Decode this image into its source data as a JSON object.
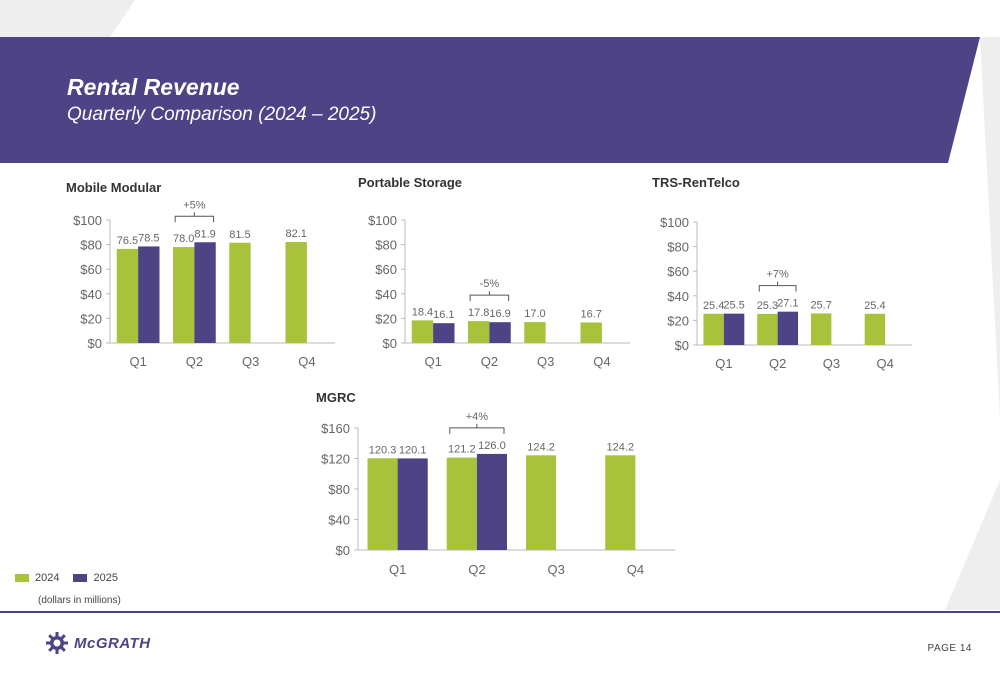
{
  "header": {
    "title": "Rental Revenue",
    "subtitle": "Quarterly Comparison (2024 – 2025)"
  },
  "colors": {
    "y2024": "#a8c23c",
    "y2025": "#4e4385",
    "banner": "#4e4385"
  },
  "legend": {
    "label_2024": "2024",
    "label_2025": "2025"
  },
  "note": "(dollars in millions)",
  "footer": {
    "brand": "McGRATH",
    "page": "PAGE  14"
  },
  "chart_data": [
    {
      "type": "bar",
      "title": "Mobile Modular",
      "categories": [
        "Q1",
        "Q2",
        "Q3",
        "Q4"
      ],
      "ylim": [
        0,
        100
      ],
      "yticks": [
        "$0",
        "$20",
        "$40",
        "$60",
        "$80",
        "$100"
      ],
      "series": [
        {
          "name": "2024",
          "values": [
            76.5,
            78.0,
            81.5,
            82.1
          ],
          "labels": [
            "76.5",
            "78.0",
            "81.5",
            "82.1"
          ]
        },
        {
          "name": "2025",
          "values": [
            78.5,
            81.9,
            null,
            null
          ],
          "labels": [
            "78.5",
            "81.9",
            "",
            ""
          ]
        }
      ],
      "annotation": {
        "text": "+5%",
        "category": "Q2"
      }
    },
    {
      "type": "bar",
      "title": "Portable Storage",
      "categories": [
        "Q1",
        "Q2",
        "Q3",
        "Q4"
      ],
      "ylim": [
        0,
        100
      ],
      "yticks": [
        "$0",
        "$20",
        "$40",
        "$60",
        "$80",
        "$100"
      ],
      "series": [
        {
          "name": "2024",
          "values": [
            18.4,
            17.8,
            17.0,
            16.7
          ],
          "labels": [
            "18.4",
            "17.8",
            "17.0",
            "16.7"
          ]
        },
        {
          "name": "2025",
          "values": [
            16.1,
            16.9,
            null,
            null
          ],
          "labels": [
            "16.1",
            "16.9",
            "",
            ""
          ]
        }
      ],
      "annotation": {
        "text": "-5%",
        "category": "Q2"
      }
    },
    {
      "type": "bar",
      "title": "TRS-RenTelco",
      "categories": [
        "Q1",
        "Q2",
        "Q3",
        "Q4"
      ],
      "ylim": [
        0,
        100
      ],
      "yticks": [
        "$0",
        "$20",
        "$40",
        "$60",
        "$80",
        "$100"
      ],
      "series": [
        {
          "name": "2024",
          "values": [
            25.4,
            25.3,
            25.7,
            25.4
          ],
          "labels": [
            "25.4",
            "25.3",
            "25.7",
            "25.4"
          ]
        },
        {
          "name": "2025",
          "values": [
            25.5,
            27.1,
            null,
            null
          ],
          "labels": [
            "25.5",
            "27.1",
            "",
            ""
          ]
        }
      ],
      "annotation": {
        "text": "+7%",
        "category": "Q2"
      }
    },
    {
      "type": "bar",
      "title": "MGRC",
      "categories": [
        "Q1",
        "Q2",
        "Q3",
        "Q4"
      ],
      "ylim": [
        0,
        160
      ],
      "yticks": [
        "$0",
        "$40",
        "$80",
        "$120",
        "$160"
      ],
      "series": [
        {
          "name": "2024",
          "values": [
            120.3,
            121.2,
            124.2,
            124.2
          ],
          "labels": [
            "120.3",
            "121.2",
            "124.2",
            "124.2"
          ]
        },
        {
          "name": "2025",
          "values": [
            120.1,
            126.0,
            null,
            null
          ],
          "labels": [
            "120.1",
            "126.0",
            "",
            ""
          ]
        }
      ],
      "annotation": {
        "text": "+4%",
        "category": "Q2"
      }
    }
  ]
}
